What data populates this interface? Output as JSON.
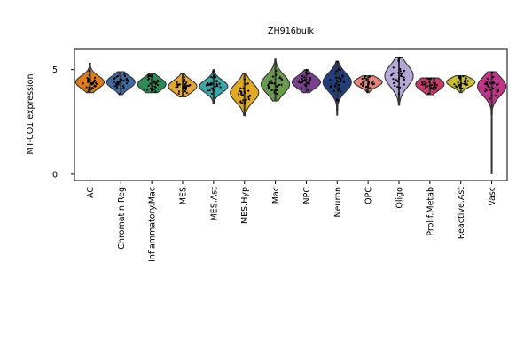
{
  "chart_data": {
    "type": "violin",
    "title": "ZH916bulk",
    "xlabel": "",
    "ylabel": "MT-CO1 expression",
    "ylim": [
      -0.3,
      6.0
    ],
    "yticks": [
      0,
      5
    ],
    "categories": [
      "AC",
      "Chromatin.Reg",
      "Inflammatory.Mac",
      "MES",
      "MES.Ast",
      "MES.Hyp",
      "Mac",
      "NPC",
      "Neuron",
      "OPC",
      "Oligo",
      "Prolif.Metab",
      "Reactive.Ast",
      "Vasc"
    ],
    "colors": [
      "#e07b1a",
      "#3f6ba3",
      "#2e8b57",
      "#e3a733",
      "#3aa6a6",
      "#e0a922",
      "#6a9a4e",
      "#7b3f8f",
      "#223d7a",
      "#e8837a",
      "#b3a7d6",
      "#c73b6a",
      "#c9c12c",
      "#c2338a"
    ],
    "series": [
      {
        "name": "AC",
        "min": 3.9,
        "q1": 4.2,
        "median": 4.4,
        "q3": 4.6,
        "max": 5.3
      },
      {
        "name": "Chromatin.Reg",
        "min": 3.8,
        "q1": 4.2,
        "median": 4.4,
        "q3": 4.6,
        "max": 4.9
      },
      {
        "name": "Inflammatory.Mac",
        "min": 3.9,
        "q1": 4.1,
        "median": 4.3,
        "q3": 4.5,
        "max": 4.8
      },
      {
        "name": "MES",
        "min": 3.7,
        "q1": 4.0,
        "median": 4.2,
        "q3": 4.4,
        "max": 4.8
      },
      {
        "name": "MES.Ast",
        "min": 3.4,
        "q1": 4.0,
        "median": 4.2,
        "q3": 4.4,
        "max": 5.0
      },
      {
        "name": "MES.Hyp",
        "min": 2.8,
        "q1": 3.6,
        "median": 3.9,
        "q3": 4.2,
        "max": 4.8
      },
      {
        "name": "Mac",
        "min": 3.5,
        "q1": 4.0,
        "median": 4.3,
        "q3": 4.6,
        "max": 5.5
      },
      {
        "name": "NPC",
        "min": 3.9,
        "q1": 4.2,
        "median": 4.4,
        "q3": 4.6,
        "max": 5.0
      },
      {
        "name": "Neuron",
        "min": 2.8,
        "q1": 4.1,
        "median": 4.4,
        "q3": 4.7,
        "max": 5.4
      },
      {
        "name": "OPC",
        "min": 3.9,
        "q1": 4.2,
        "median": 4.4,
        "q3": 4.5,
        "max": 4.7
      },
      {
        "name": "Oligo",
        "min": 3.3,
        "q1": 4.3,
        "median": 4.7,
        "q3": 5.0,
        "max": 5.6
      },
      {
        "name": "Prolif.Metab",
        "min": 3.8,
        "q1": 4.1,
        "median": 4.3,
        "q3": 4.5,
        "max": 4.6
      },
      {
        "name": "Reactive.Ast",
        "min": 3.9,
        "q1": 4.2,
        "median": 4.4,
        "q3": 4.5,
        "max": 4.7
      },
      {
        "name": "Vasc",
        "min": 0.0,
        "q1": 3.9,
        "median": 4.2,
        "q3": 4.5,
        "max": 4.9
      }
    ]
  }
}
